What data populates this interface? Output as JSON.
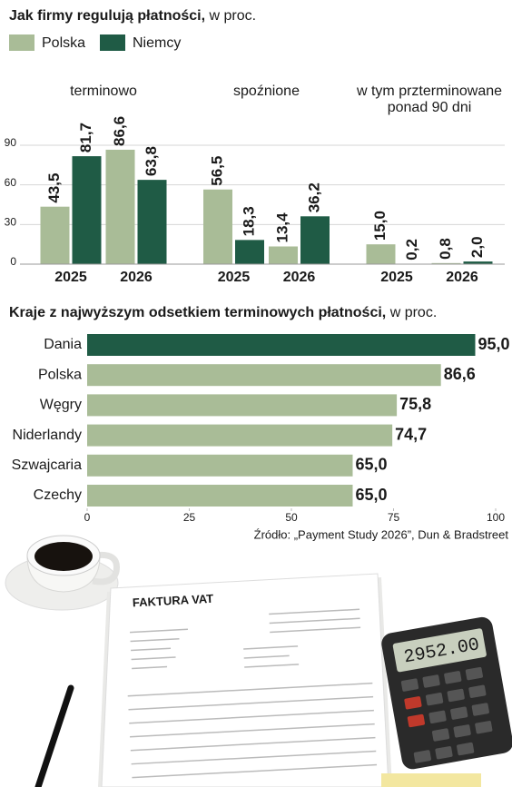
{
  "chart_data": [
    {
      "type": "bar",
      "title": "Jak firmy regulują płatności,",
      "unit": "w proc.",
      "groups": [
        "terminowo",
        "spoźnione",
        "w tym przterminowane ponad 90 dni"
      ],
      "categories": [
        "2025",
        "2026",
        "2025",
        "2026",
        "2025",
        "2026"
      ],
      "series": [
        {
          "name": "Polska",
          "color": "#a9bc97",
          "values": [
            43.5,
            86.6,
            56.5,
            13.4,
            15.0,
            0.8
          ],
          "value_labels": [
            "43,5",
            "86,6",
            "56,5",
            "13,4",
            "15,0",
            "0,8"
          ]
        },
        {
          "name": "Niemcy",
          "color": "#1f5b45",
          "values": [
            81.7,
            63.8,
            18.3,
            36.2,
            0.2,
            2.0
          ],
          "value_labels": [
            "81,7",
            "63,8",
            "18,3",
            "36,2",
            "0,2",
            "2,0"
          ]
        }
      ],
      "ylim": [
        0,
        90
      ],
      "yticks": [
        0,
        30,
        60,
        90
      ],
      "grid": true
    },
    {
      "type": "hbar",
      "title": "Kraje z najwyższym odsetkiem terminowych płatności,",
      "unit": "w proc.",
      "categories": [
        "Dania",
        "Polska",
        "Węgry",
        "Niderlandy",
        "Szwajcaria",
        "Czechy"
      ],
      "values": [
        95.0,
        86.6,
        75.8,
        74.7,
        65.0,
        65.0
      ],
      "value_labels": [
        "95,0",
        "86,6",
        "75,8",
        "74,7",
        "65,0",
        "65,0"
      ],
      "colors": [
        "#1f5b45",
        "#a9bc97",
        "#a9bc97",
        "#a9bc97",
        "#a9bc97",
        "#a9bc97"
      ],
      "xlim": [
        0,
        100
      ],
      "xticks": [
        0,
        25,
        50,
        75,
        100
      ],
      "source": "Źródło: „Payment Study 2026”, Dun & Bradstreet"
    }
  ],
  "photo": {
    "invoice_title": "FAKTURA VAT",
    "calculator_display": "2952.00"
  }
}
